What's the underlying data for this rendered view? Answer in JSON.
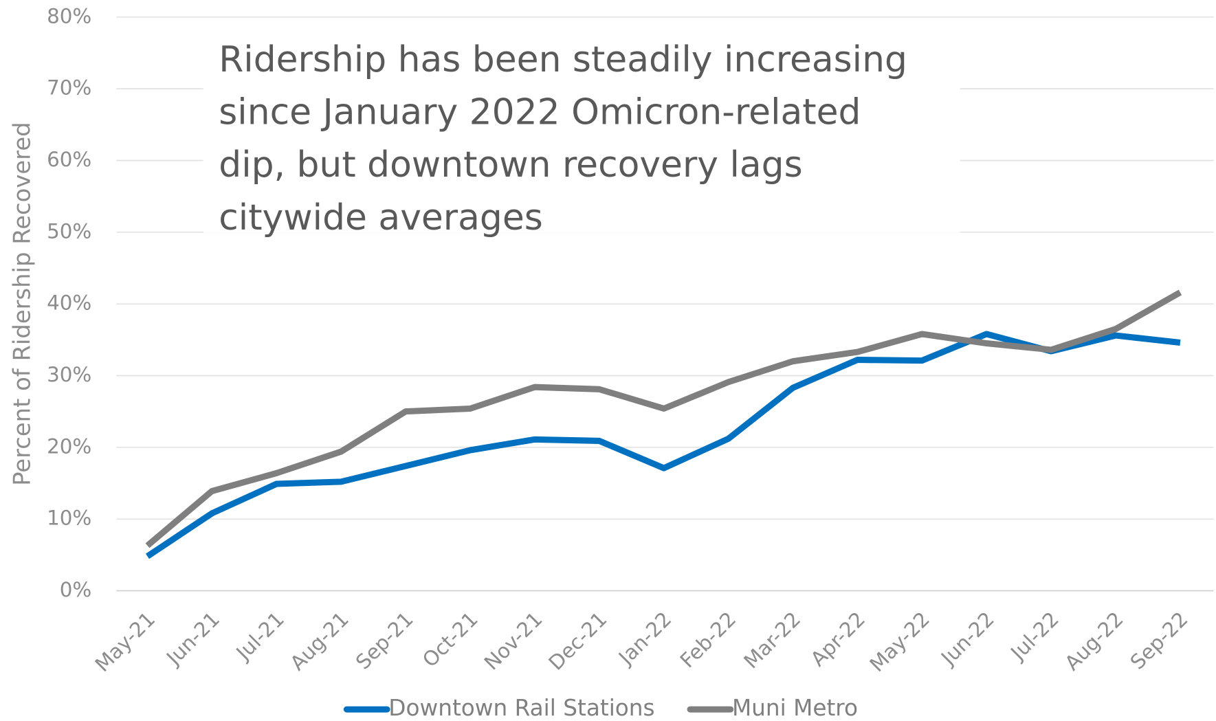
{
  "chart_data": {
    "type": "line",
    "annotation": [
      "Ridership has been steadily increasing",
      "since January 2022 Omicron-related",
      "dip, but downtown recovery lags",
      "citywide averages"
    ],
    "ylabel": "Percent of Ridership Recovered",
    "categories": [
      "May-21",
      "Jun-21",
      "Jul-21",
      "Aug-21",
      "Sep-21",
      "Oct-21",
      "Nov-21",
      "Dec-21",
      "Jan-22",
      "Feb-22",
      "Mar-22",
      "Apr-22",
      "May-22",
      "Jun-22",
      "Jul-22",
      "Aug-22",
      "Sep-22"
    ],
    "series": [
      {
        "name": "Downtown Rail Stations",
        "color": "#0070c0",
        "values": [
          4.8,
          10.8,
          14.9,
          15.2,
          17.4,
          19.6,
          21.1,
          20.9,
          17.1,
          21.2,
          28.3,
          32.2,
          32.1,
          35.8,
          33.4,
          35.6,
          34.6
        ]
      },
      {
        "name": "Muni Metro",
        "color": "#7f7f7f",
        "values": [
          6.3,
          13.9,
          16.4,
          19.4,
          25.0,
          25.4,
          28.4,
          28.1,
          25.4,
          29.1,
          32.0,
          33.3,
          35.8,
          34.5,
          33.6,
          36.5,
          41.6
        ]
      }
    ],
    "ylim": [
      0,
      80
    ],
    "yticks": [
      {
        "value": 0,
        "label": "0%"
      },
      {
        "value": 10,
        "label": "10%"
      },
      {
        "value": 20,
        "label": "20%"
      },
      {
        "value": 30,
        "label": "30%"
      },
      {
        "value": 40,
        "label": "40%"
      },
      {
        "value": 50,
        "label": "50%"
      },
      {
        "value": 60,
        "label": "60%"
      },
      {
        "value": 70,
        "label": "70%"
      },
      {
        "value": 80,
        "label": "80%"
      }
    ],
    "grid": true,
    "legend": "bottom"
  }
}
